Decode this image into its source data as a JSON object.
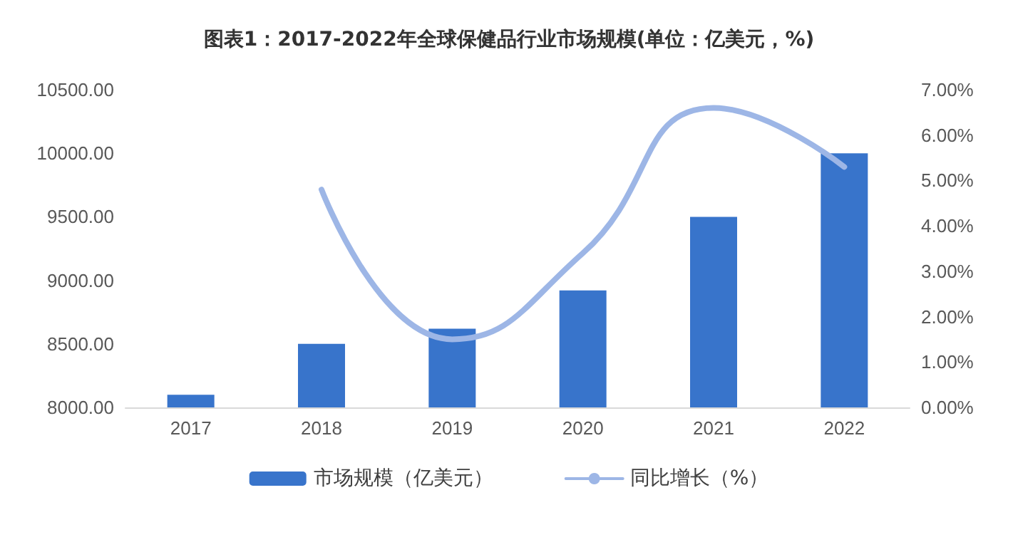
{
  "chart_data": {
    "type": "bar",
    "title": "图表1：2017-2022年全球保健品行业市场规模(单位：亿美元，%)",
    "categories": [
      "2017",
      "2018",
      "2019",
      "2020",
      "2021",
      "2022"
    ],
    "series": [
      {
        "name": "市场规模（亿美元）",
        "color": "#3874cb",
        "values": [
          8100,
          8500,
          8620,
          8920,
          9500,
          10000
        ]
      },
      {
        "name": "同比增长（%）",
        "type": "line",
        "axis": "y2",
        "color": "#9db6e6",
        "values": [
          null,
          4.8,
          1.5,
          3.4,
          6.6,
          5.3
        ]
      }
    ],
    "ylim": [
      8000,
      10500
    ],
    "yticks": [
      {
        "value": 8000,
        "label": "8000.00"
      },
      {
        "value": 8500,
        "label": "8500.00"
      },
      {
        "value": 9000,
        "label": "9000.00"
      },
      {
        "value": 9500,
        "label": "9500.00"
      },
      {
        "value": 10000,
        "label": "10000.00"
      },
      {
        "value": 10500,
        "label": "10500.00"
      }
    ],
    "y2lim": [
      0,
      7
    ],
    "y2ticks": [
      {
        "value": 0,
        "label": "0.00%"
      },
      {
        "value": 1,
        "label": "1.00%"
      },
      {
        "value": 2,
        "label": "2.00%"
      },
      {
        "value": 3,
        "label": "3.00%"
      },
      {
        "value": 4,
        "label": "4.00%"
      },
      {
        "value": 5,
        "label": "5.00%"
      },
      {
        "value": 6,
        "label": "6.00%"
      },
      {
        "value": 7,
        "label": "7.00%"
      }
    ],
    "grid": false,
    "legend": "bottom",
    "marker": "none",
    "line_style": "solid"
  }
}
